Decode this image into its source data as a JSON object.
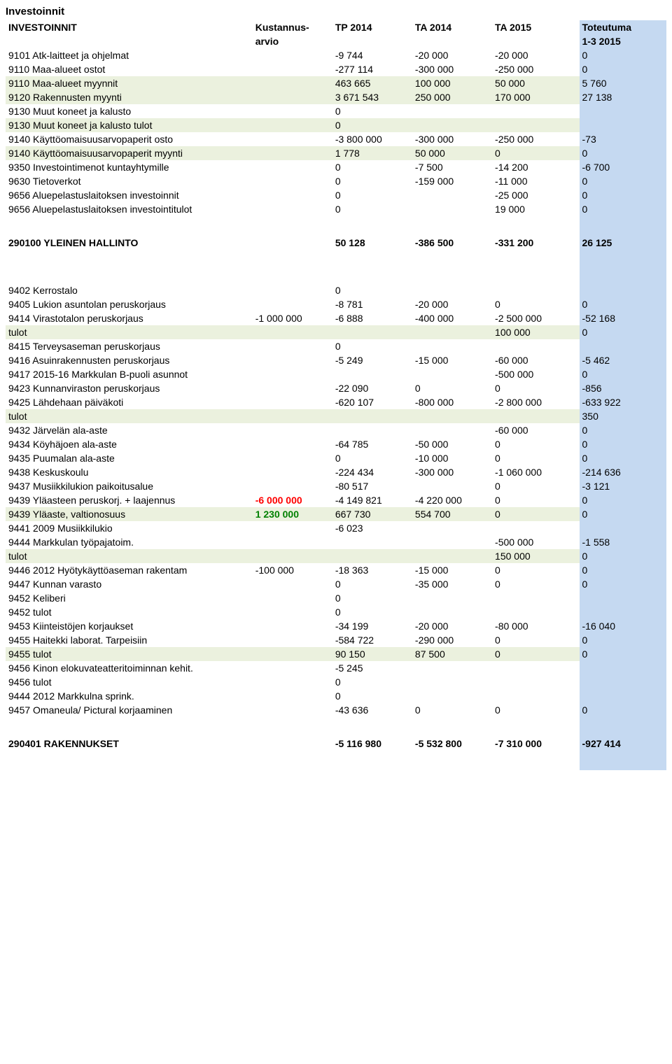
{
  "title": "Investoinnit",
  "headers": {
    "main": "INVESTOINNIT",
    "arvio_top": "Kustannus-",
    "arvio_bot": "arvio",
    "tp": "TP 2014",
    "ta14": "TA 2014",
    "ta15": "TA 2015",
    "tot_top": "Toteutuma",
    "tot_bot": "1-3 2015"
  },
  "g1": [
    {
      "label": "9101 Atk-laitteet ja ohjelmat",
      "arvio": "",
      "tp": "-9 744",
      "ta14": "-20 000",
      "ta15": "-20 000",
      "tot": "0",
      "cls": ""
    },
    {
      "label": "9110 Maa-alueet ostot",
      "arvio": "",
      "tp": "-277 114",
      "ta14": "-300 000",
      "ta15": "-250 000",
      "tot": "0",
      "cls": ""
    },
    {
      "label": "9110 Maa-alueet myynnit",
      "arvio": "",
      "tp": "463 665",
      "ta14": "100 000",
      "ta15": "50 000",
      "tot": "5 760",
      "cls": "green-row"
    },
    {
      "label": "9120 Rakennusten myynti",
      "arvio": "",
      "tp": "3 671 543",
      "ta14": "250 000",
      "ta15": "170 000",
      "tot": "27 138",
      "cls": "green-row"
    },
    {
      "label": "9130 Muut koneet ja kalusto",
      "arvio": "",
      "tp": "0",
      "ta14": "",
      "ta15": "",
      "tot": "",
      "cls": ""
    },
    {
      "label": "9130 Muut koneet ja kalusto tulot",
      "arvio": "",
      "tp": "0",
      "ta14": "",
      "ta15": "",
      "tot": "",
      "cls": "green-row"
    },
    {
      "label": "9140 Käyttöomaisuusarvopaperit osto",
      "arvio": "",
      "tp": "-3 800 000",
      "ta14": "-300 000",
      "ta15": "-250 000",
      "tot": "-73",
      "cls": ""
    },
    {
      "label": "9140 Käyttöomaisuusarvopaperit myynti",
      "arvio": "",
      "tp": "1 778",
      "ta14": "50 000",
      "ta15": "0",
      "tot": "0",
      "cls": "green-row"
    },
    {
      "label": "9350 Investointimenot kuntayhtymille",
      "arvio": "",
      "tp": "0",
      "ta14": "-7 500",
      "ta15": "-14 200",
      "tot": "-6 700",
      "cls": ""
    },
    {
      "label": "9630 Tietoverkot",
      "arvio": "",
      "tp": "0",
      "ta14": "-159 000",
      "ta15": "-11 000",
      "tot": "0",
      "cls": ""
    },
    {
      "label": "9656 Aluepelastuslaitoksen investoinnit",
      "arvio": "",
      "tp": "0",
      "ta14": "",
      "ta15": "-25 000",
      "tot": "0",
      "cls": ""
    },
    {
      "label": "9656 Aluepelastuslaitoksen investointitulot",
      "arvio": "",
      "tp": "0",
      "ta14": "",
      "ta15": "19 000",
      "tot": "0",
      "cls": ""
    }
  ],
  "total1": {
    "label": "290100 YLEINEN HALLINTO",
    "arvio": "",
    "tp": "50 128",
    "ta14": "-386 500",
    "ta15": "-331 200",
    "tot": "26 125"
  },
  "g2": [
    {
      "label": "9402 Kerrostalo",
      "arvio": "",
      "tp": "0",
      "ta14": "",
      "ta15": "",
      "tot": "",
      "cls": ""
    },
    {
      "label": "9405 Lukion asuntolan peruskorjaus",
      "arvio": "",
      "tp": "-8 781",
      "ta14": "-20 000",
      "ta15": "0",
      "tot": "0",
      "cls": ""
    },
    {
      "label": "9414 Virastotalon peruskorjaus",
      "arvio": "-1 000 000",
      "arvio_cls": "",
      "tp": "-6 888",
      "ta14": "-400 000",
      "ta15": "-2 500 000",
      "tot": "-52 168",
      "cls": ""
    },
    {
      "label": "tulot",
      "arvio": "",
      "tp": "",
      "ta14": "",
      "ta15": "100 000",
      "tot": "0",
      "cls": "green-row"
    },
    {
      "label": "8415 Terveysaseman peruskorjaus",
      "arvio": "",
      "tp": "0",
      "ta14": "",
      "ta15": "",
      "tot": "",
      "cls": ""
    },
    {
      "label": "9416 Asuinrakennusten peruskorjaus",
      "arvio": "",
      "tp": "-5 249",
      "ta14": "-15 000",
      "ta15": "-60 000",
      "tot": "-5 462",
      "cls": ""
    },
    {
      "label": "9417 2015-16 Markkulan B-puoli asunnot",
      "arvio": "",
      "tp": "",
      "ta14": "",
      "ta15": "-500 000",
      "tot": "0",
      "cls": ""
    },
    {
      "label": "9423 Kunnanviraston peruskorjaus",
      "arvio": "",
      "tp": "-22 090",
      "ta14": "0",
      "ta15": "0",
      "tot": "-856",
      "cls": ""
    },
    {
      "label": "9425 Lähdehaan päiväkoti",
      "arvio": "",
      "tp": "-620 107",
      "ta14": "-800 000",
      "ta15": "-2 800 000",
      "tot": "-633 922",
      "cls": ""
    },
    {
      "label": "tulot",
      "arvio": "",
      "tp": "",
      "ta14": "",
      "ta15": "",
      "tot": "350",
      "cls": "green-row"
    },
    {
      "label": "9432 Järvelän ala-aste",
      "arvio": "",
      "tp": "",
      "ta14": "",
      "ta15": "-60 000",
      "tot": "0",
      "cls": ""
    },
    {
      "label": "9434 Köyhäjoen ala-aste",
      "arvio": "",
      "tp": "-64 785",
      "ta14": "-50 000",
      "ta15": "0",
      "tot": "0",
      "cls": ""
    },
    {
      "label": "9435 Puumalan ala-aste",
      "arvio": "",
      "tp": "0",
      "ta14": "-10 000",
      "ta15": "0",
      "tot": "0",
      "cls": ""
    },
    {
      "label": "9438 Keskuskoulu",
      "arvio": "",
      "tp": "-224 434",
      "ta14": "-300 000",
      "ta15": "-1 060 000",
      "tot": "-214 636",
      "cls": ""
    },
    {
      "label": "9437 Musiikkilukion paikoitusalue",
      "arvio": "",
      "tp": "-80 517",
      "ta14": "",
      "ta15": "0",
      "tot": "-3 121",
      "cls": ""
    },
    {
      "label": "9439 Yläasteen peruskorj. + laajennus",
      "arvio": "-6 000 000",
      "arvio_cls": "red",
      "tp": "-4 149 821",
      "ta14": "-4 220 000",
      "ta15": "0",
      "tot": "0",
      "cls": ""
    },
    {
      "label": "9439 Yläaste, valtionosuus",
      "arvio": "1 230 000",
      "arvio_cls": "green",
      "tp": "667 730",
      "ta14": "554 700",
      "ta15": "0",
      "tot": "0",
      "cls": "green-row"
    },
    {
      "label": "9441 2009 Musiikkilukio",
      "arvio": "",
      "tp": "-6 023",
      "ta14": "",
      "ta15": "",
      "tot": "",
      "cls": ""
    },
    {
      "label": "9444 Markkulan työpajatoim.",
      "arvio": "",
      "tp": "",
      "ta14": "",
      "ta15": "-500 000",
      "tot": "-1 558",
      "cls": ""
    },
    {
      "label": "tulot",
      "arvio": "",
      "tp": "",
      "ta14": "",
      "ta15": "150 000",
      "tot": "0",
      "cls": "green-row"
    },
    {
      "label": "9446 2012 Hyötykäyttöaseman rakentam",
      "arvio": "-100 000",
      "arvio_cls": "",
      "tp": "-18 363",
      "ta14": "-15 000",
      "ta15": "0",
      "tot": "0",
      "cls": ""
    },
    {
      "label": "9447 Kunnan varasto",
      "arvio": "",
      "tp": "0",
      "ta14": "-35 000",
      "ta15": "0",
      "tot": "0",
      "cls": ""
    },
    {
      "label": "9452 Keliberi",
      "arvio": "",
      "tp": "0",
      "ta14": "",
      "ta15": "",
      "tot": "",
      "cls": ""
    },
    {
      "label": "9452 tulot",
      "arvio": "",
      "tp": "0",
      "ta14": "",
      "ta15": "",
      "tot": "",
      "cls": ""
    },
    {
      "label": "9453 Kiinteistöjen korjaukset",
      "arvio": "",
      "tp": "-34 199",
      "ta14": "-20 000",
      "ta15": "-80 000",
      "tot": "-16 040",
      "cls": ""
    },
    {
      "label": "9455 Haitekki laborat. Tarpeisiin",
      "arvio": "",
      "tp": "-584 722",
      "ta14": "-290 000",
      "ta15": "0",
      "tot": "0",
      "cls": ""
    },
    {
      "label": "9455 tulot",
      "arvio": "",
      "tp": "90 150",
      "ta14": "87 500",
      "ta15": "0",
      "tot": "0",
      "cls": "green-row"
    },
    {
      "label": "9456 Kinon elokuvateatteritoiminnan kehit.",
      "arvio": "",
      "tp": "-5 245",
      "ta14": "",
      "ta15": "",
      "tot": "",
      "cls": ""
    },
    {
      "label": "9456 tulot",
      "arvio": "",
      "tp": "0",
      "ta14": "",
      "ta15": "",
      "tot": "",
      "cls": ""
    },
    {
      "label": "9444 2012 Markkulna sprink.",
      "arvio": "",
      "tp": "0",
      "ta14": "",
      "ta15": "",
      "tot": "",
      "cls": ""
    },
    {
      "label": "9457 Omaneula/ Pictural korjaaminen",
      "arvio": "",
      "tp": "-43 636",
      "ta14": "0",
      "ta15": "0",
      "tot": "0",
      "cls": ""
    }
  ],
  "total2": {
    "label": "290401 RAKENNUKSET",
    "arvio": "",
    "tp": "-5 116 980",
    "ta14": "-5 532 800",
    "ta15": "-7 310 000",
    "tot": "-927 414"
  }
}
